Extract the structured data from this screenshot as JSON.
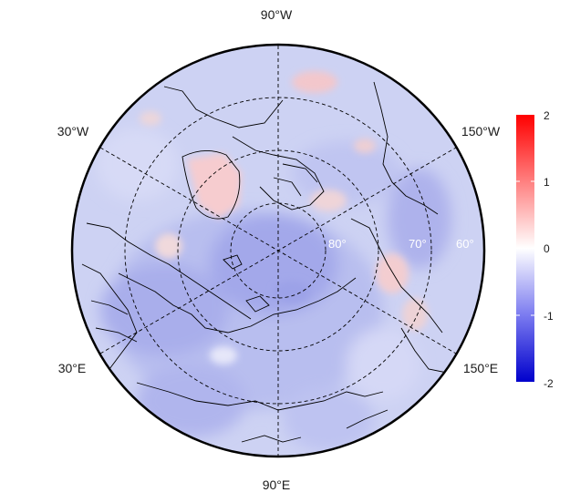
{
  "map": {
    "projection": "north-polar-stereographic",
    "graticule": {
      "style": "dashed",
      "color": "#000000"
    },
    "longitude_labels": {
      "top": "90°W",
      "bottom": "90°E",
      "upper_left": "30°W",
      "upper_right": "150°W",
      "lower_left": "30°E",
      "lower_right": "150°E"
    },
    "latitude_labels": [
      "80°",
      "70°",
      "60°"
    ],
    "field_description": "anomaly field, predominantly negative (blue) with positive patches over Greenland and the Canadian Arctic"
  },
  "colorbar": {
    "min": -2,
    "max": 2,
    "colors": {
      "low": "#0000cc",
      "mid": "#ffffff",
      "high": "#ff0000"
    },
    "ticks": [
      "2",
      "1",
      "0",
      "-1",
      "-2"
    ]
  }
}
